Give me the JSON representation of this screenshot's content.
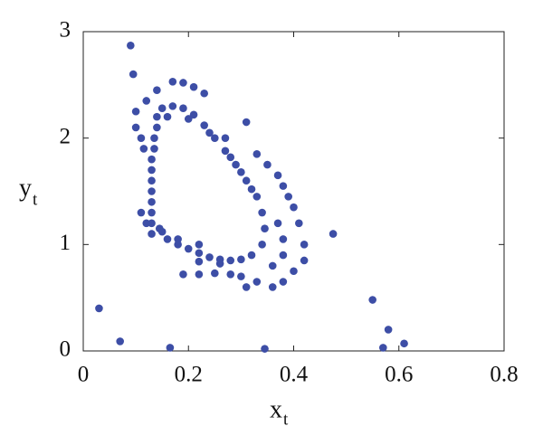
{
  "chart_data": {
    "type": "scatter",
    "xlabel": "x",
    "xlabel_subscript": "t",
    "ylabel": "y",
    "ylabel_subscript": "t",
    "color": "#3d4ea6",
    "xlim": [
      0,
      0.8
    ],
    "xticks": [
      0,
      0.2,
      0.4,
      0.6,
      0.8
    ],
    "ylim": [
      0,
      3
    ],
    "yticks": [
      0,
      1,
      2,
      3
    ],
    "x": [
      0.03,
      0.07,
      0.165,
      0.345,
      0.55,
      0.57,
      0.58,
      0.61,
      0.09,
      0.095,
      0.475,
      0.17,
      0.19,
      0.21,
      0.23,
      0.14,
      0.12,
      0.1,
      0.1,
      0.11,
      0.115,
      0.11,
      0.12,
      0.15,
      0.18,
      0.22,
      0.27,
      0.31,
      0.33,
      0.35,
      0.37,
      0.38,
      0.39,
      0.4,
      0.41,
      0.42,
      0.42,
      0.4,
      0.38,
      0.36,
      0.31,
      0.33,
      0.3,
      0.28,
      0.25,
      0.22,
      0.19,
      0.36,
      0.38,
      0.38,
      0.37,
      0.13,
      0.13,
      0.13,
      0.13,
      0.13,
      0.13,
      0.13,
      0.13,
      0.135,
      0.135,
      0.14,
      0.14,
      0.15,
      0.17,
      0.19,
      0.21,
      0.23,
      0.25,
      0.27,
      0.29,
      0.31,
      0.33,
      0.34,
      0.345,
      0.34,
      0.32,
      0.3,
      0.28,
      0.26,
      0.24,
      0.22,
      0.2,
      0.18,
      0.16,
      0.145,
      0.16,
      0.2,
      0.24,
      0.28,
      0.3,
      0.32,
      0.26,
      0.22
    ],
    "y": [
      0.4,
      0.09,
      0.03,
      0.02,
      0.48,
      0.03,
      0.2,
      0.07,
      2.87,
      2.6,
      1.1,
      2.53,
      2.52,
      2.48,
      2.42,
      2.45,
      2.35,
      2.25,
      2.1,
      2.0,
      1.9,
      1.3,
      1.2,
      1.12,
      1.05,
      1.0,
      2.0,
      2.15,
      1.85,
      1.75,
      1.65,
      1.55,
      1.45,
      1.35,
      1.2,
      1.0,
      0.85,
      0.75,
      0.65,
      0.6,
      0.6,
      0.65,
      0.7,
      0.72,
      0.73,
      0.72,
      0.72,
      0.8,
      0.9,
      1.05,
      1.2,
      1.1,
      1.2,
      1.3,
      1.4,
      1.5,
      1.6,
      1.7,
      1.8,
      1.9,
      2.0,
      2.1,
      2.2,
      2.28,
      2.3,
      2.28,
      2.22,
      2.12,
      2.0,
      1.88,
      1.75,
      1.6,
      1.45,
      1.3,
      1.15,
      1.0,
      0.9,
      0.86,
      0.85,
      0.86,
      0.88,
      0.92,
      0.96,
      1.0,
      1.05,
      1.15,
      2.2,
      2.18,
      2.05,
      1.82,
      1.68,
      1.52,
      0.82,
      0.84
    ]
  }
}
